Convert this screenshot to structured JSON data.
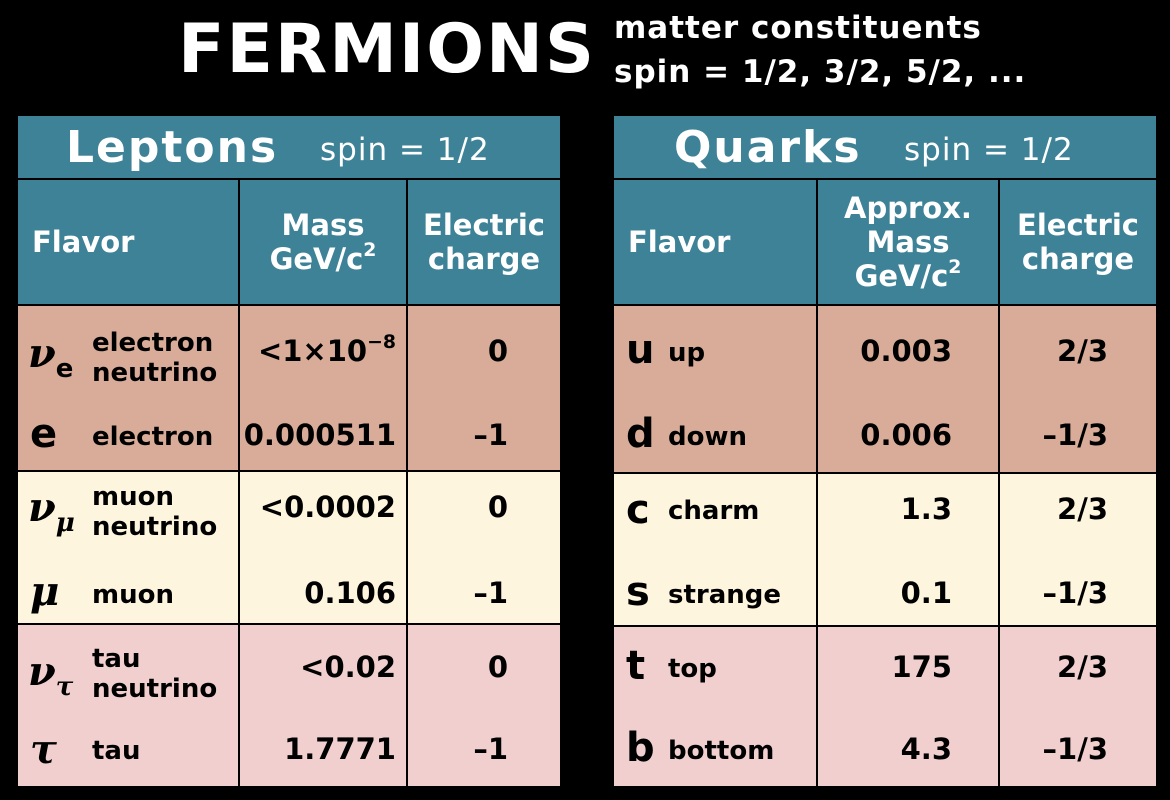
{
  "title": "FERMIONS",
  "subtitle_line1": "matter constituents",
  "subtitle_line2": "spin = 1/2, 3/2, 5/2, ...",
  "colors": {
    "header_bg": "#3e8297",
    "generation1": "#d8ac98",
    "generation2": "#fdf5de",
    "generation3": "#f2cfcf"
  },
  "leptons": {
    "title": "Leptons",
    "spin": "spin = 1/2",
    "col_flavor": "Flavor",
    "col_mass_line1": "Mass",
    "col_mass_unit": "GeV/c",
    "col_mass_exp": "2",
    "col_charge_line1": "Electric",
    "col_charge_line2": "charge",
    "rows": [
      {
        "sym": "ν",
        "sub": "e",
        "name1": "electron",
        "name2": "neutrino",
        "mass_base": "<1×10",
        "mass_exp": "−8",
        "charge": "0"
      },
      {
        "sym": "e",
        "sub": "",
        "name1": "electron",
        "name2": "",
        "mass": "0.000511",
        "charge": "–1"
      },
      {
        "sym": "ν",
        "sub": "μ",
        "name1": "muon",
        "name2": "neutrino",
        "mass": "<0.0002",
        "charge": "0"
      },
      {
        "sym": "μ",
        "sub": "",
        "name1": "muon",
        "name2": "",
        "mass": "0.106",
        "charge": "–1"
      },
      {
        "sym": "ν",
        "sub": "τ",
        "name1": "tau",
        "name2": "neutrino",
        "mass": "<0.02",
        "charge": "0"
      },
      {
        "sym": "τ",
        "sub": "",
        "name1": "tau",
        "name2": "",
        "mass": "1.7771",
        "charge": "–1"
      }
    ]
  },
  "quarks": {
    "title": "Quarks",
    "spin": "spin = 1/2",
    "col_flavor": "Flavor",
    "col_mass_line1": "Approx.",
    "col_mass_line2": "Mass",
    "col_mass_unit": "GeV/c",
    "col_mass_exp": "2",
    "col_charge_line1": "Electric",
    "col_charge_line2": "charge",
    "rows": [
      {
        "sym": "u",
        "name": "up",
        "mass": "0.003",
        "charge": "2/3"
      },
      {
        "sym": "d",
        "name": "down",
        "mass": "0.006",
        "charge": "–1/3"
      },
      {
        "sym": "c",
        "name": "charm",
        "mass": "1.3",
        "charge": "2/3"
      },
      {
        "sym": "s",
        "name": "strange",
        "mass": "0.1",
        "charge": "–1/3"
      },
      {
        "sym": "t",
        "name": "top",
        "mass": "175",
        "charge": "2/3"
      },
      {
        "sym": "b",
        "name": "bottom",
        "mass": "4.3",
        "charge": "–1/3"
      }
    ]
  }
}
